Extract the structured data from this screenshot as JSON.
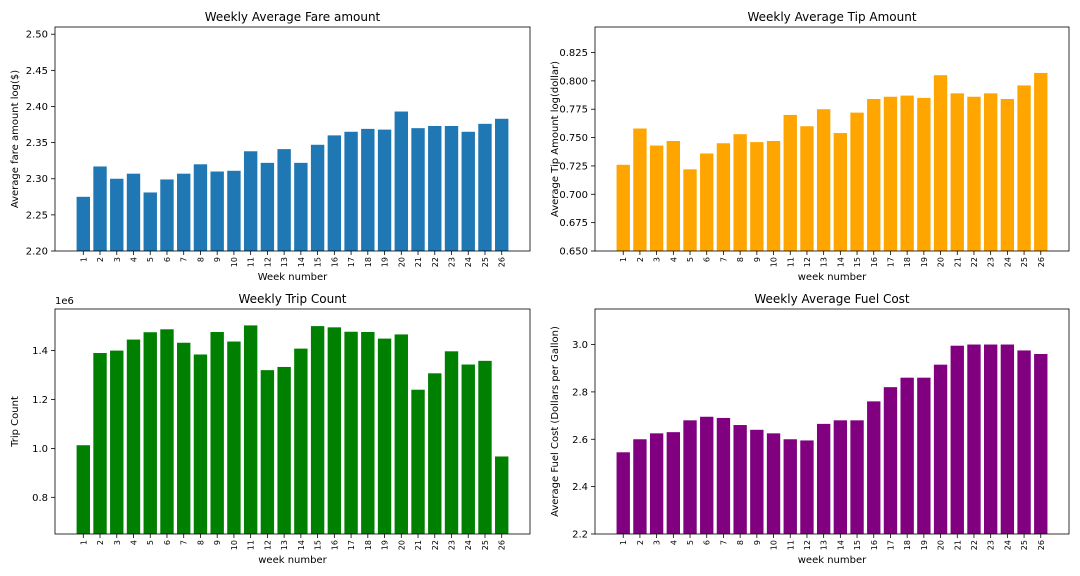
{
  "chart_data": [
    {
      "type": "bar",
      "title": "Weekly Average Fare amount",
      "xlabel": "Week number",
      "ylabel": "Average fare amount log($)",
      "color": "#1f77b4",
      "ylim": [
        2.2,
        2.51
      ],
      "yticks": [
        2.2,
        2.25,
        2.3,
        2.35,
        2.4,
        2.45,
        2.5
      ],
      "ytick_labels": [
        "2.20",
        "2.25",
        "2.30",
        "2.35",
        "2.40",
        "2.45",
        "2.50"
      ],
      "categories": [
        "1",
        "2",
        "3",
        "4",
        "5",
        "6",
        "7",
        "8",
        "9",
        "10",
        "11",
        "12",
        "13",
        "14",
        "15",
        "16",
        "17",
        "18",
        "19",
        "20",
        "21",
        "22",
        "23",
        "24",
        "25",
        "26"
      ],
      "values": [
        2.275,
        2.317,
        2.3,
        2.307,
        2.281,
        2.299,
        2.307,
        2.32,
        2.31,
        2.311,
        2.338,
        2.322,
        2.341,
        2.322,
        2.347,
        2.36,
        2.365,
        2.369,
        2.368,
        2.393,
        2.37,
        2.373,
        2.373,
        2.365,
        2.376,
        2.383
      ]
    },
    {
      "type": "bar",
      "title": "Weekly Average Tip Amount",
      "xlabel": "week number",
      "ylabel": "Average Tip Amount log(dollar)",
      "color": "#ffa500",
      "ylim": [
        0.65,
        0.8475
      ],
      "yticks": [
        0.65,
        0.675,
        0.7,
        0.725,
        0.75,
        0.775,
        0.8,
        0.825
      ],
      "ytick_labels": [
        "0.650",
        "0.675",
        "0.700",
        "0.725",
        "0.750",
        "0.775",
        "0.800",
        "0.825"
      ],
      "categories": [
        "1",
        "2",
        "3",
        "4",
        "5",
        "6",
        "7",
        "8",
        "9",
        "10",
        "11",
        "12",
        "13",
        "14",
        "15",
        "16",
        "17",
        "18",
        "19",
        "20",
        "21",
        "22",
        "23",
        "24",
        "25",
        "26"
      ],
      "values": [
        0.726,
        0.758,
        0.743,
        0.747,
        0.722,
        0.736,
        0.745,
        0.753,
        0.746,
        0.747,
        0.77,
        0.76,
        0.775,
        0.754,
        0.772,
        0.784,
        0.786,
        0.787,
        0.785,
        0.805,
        0.789,
        0.786,
        0.789,
        0.784,
        0.796,
        0.807
      ]
    },
    {
      "type": "bar",
      "title": "Weekly Trip Count",
      "xlabel": "week number",
      "ylabel": "Trip Count",
      "offset_label": "1e6",
      "color": "#008000",
      "ylim": [
        0.65,
        1.57
      ],
      "yticks": [
        0.8,
        1.0,
        1.2,
        1.4
      ],
      "ytick_labels": [
        "0.8",
        "1.0",
        "1.2",
        "1.4"
      ],
      "categories": [
        "1",
        "2",
        "3",
        "4",
        "5",
        "6",
        "7",
        "8",
        "9",
        "10",
        "11",
        "12",
        "13",
        "14",
        "15",
        "16",
        "17",
        "18",
        "19",
        "20",
        "21",
        "22",
        "23",
        "24",
        "25",
        "26"
      ],
      "values": [
        1.013,
        1.39,
        1.4,
        1.445,
        1.475,
        1.487,
        1.432,
        1.384,
        1.476,
        1.437,
        1.503,
        1.32,
        1.333,
        1.408,
        1.5,
        1.495,
        1.477,
        1.476,
        1.449,
        1.466,
        1.24,
        1.307,
        1.397,
        1.343,
        1.358,
        0.967
      ]
    },
    {
      "type": "bar",
      "title": "Weekly Average Fuel Cost",
      "xlabel": "week number",
      "ylabel": "Average Fuel Cost (Dollars per Gallon)",
      "color": "#800080",
      "ylim": [
        2.2,
        3.15
      ],
      "yticks": [
        2.2,
        2.4,
        2.6,
        2.8,
        3.0
      ],
      "ytick_labels": [
        "2.2",
        "2.4",
        "2.6",
        "2.8",
        "3.0"
      ],
      "categories": [
        "1",
        "2",
        "3",
        "4",
        "5",
        "6",
        "7",
        "8",
        "9",
        "10",
        "11",
        "12",
        "13",
        "14",
        "15",
        "16",
        "17",
        "18",
        "19",
        "20",
        "21",
        "22",
        "23",
        "24",
        "25",
        "26"
      ],
      "values": [
        2.545,
        2.6,
        2.625,
        2.63,
        2.68,
        2.695,
        2.69,
        2.66,
        2.64,
        2.625,
        2.6,
        2.595,
        2.665,
        2.68,
        2.68,
        2.76,
        2.82,
        2.86,
        2.86,
        2.915,
        2.995,
        3.0,
        3.0,
        3.0,
        2.975,
        2.96
      ]
    }
  ]
}
